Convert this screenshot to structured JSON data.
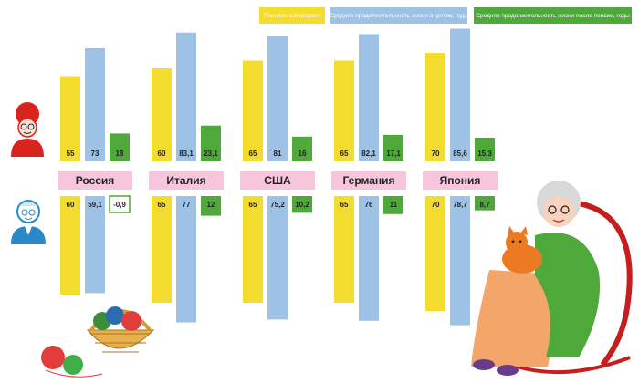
{
  "legend": {
    "retirement_age": "Пенсионный возраст",
    "life_expectancy": "Средняя продолжительность жизни в целом, годы",
    "after_retirement": "Средняя продолжительность жизни после пенсии, годы"
  },
  "colors": {
    "retirement_age": "#f3dc2e",
    "life_expectancy": "#9ec2e6",
    "after_retirement": "#4fa83a",
    "country_label_bg": "#f7c6dc",
    "women_icon": "#d9231d",
    "men_icon": "#2b88c8"
  },
  "chart_data": {
    "type": "bar",
    "categories": [
      "Россия",
      "Италия",
      "США",
      "Германия",
      "Япония"
    ],
    "groups": [
      {
        "name": "",
        "icon": "woman-icon",
        "series": [
          {
            "name": "Пенсионный возраст",
            "values": [
              55,
              60,
              65,
              65,
              70
            ],
            "labels": [
              "55",
              "60",
              "65",
              "65",
              "70"
            ]
          },
          {
            "name": "Средняя продолжительность жизни в целом, годы",
            "values": [
              73,
              83.1,
              81,
              82.1,
              85.6
            ],
            "labels": [
              "73",
              "83,1",
              "81",
              "82,1",
              "85,6"
            ]
          },
          {
            "name": "Средняя продолжительность жизни после пенсии, годы",
            "values": [
              18,
              23.1,
              16,
              17.1,
              15.3
            ],
            "labels": [
              "18",
              "23,1",
              "16",
              "17,1",
              "15,3"
            ]
          }
        ]
      },
      {
        "name": "",
        "icon": "man-icon",
        "series": [
          {
            "name": "Пенсионный возраст",
            "values": [
              60,
              65,
              65,
              65,
              70
            ],
            "labels": [
              "60",
              "65",
              "65",
              "65",
              "70"
            ]
          },
          {
            "name": "Средняя продолжительность жизни в целом, годы",
            "values": [
              59.1,
              77,
              75.2,
              76,
              78.7
            ],
            "labels": [
              "59,1",
              "77",
              "75,2",
              "76",
              "78,7"
            ]
          },
          {
            "name": "Средняя продолжительность жизни после пенсии, годы",
            "values": [
              -0.9,
              12,
              10.2,
              11,
              8.7
            ],
            "labels": [
              "-0,9",
              "12",
              "10,2",
              "11",
              "8,7"
            ]
          }
        ]
      }
    ],
    "title": "",
    "xlabel": "",
    "ylabel": "",
    "grid": false,
    "legend_position": "top-right"
  },
  "illustrations": {
    "yarn_basket": "knitting-basket-illustration",
    "grandma": "grandmother-rocking-chair-illustration",
    "cat": "cat-illustration"
  }
}
